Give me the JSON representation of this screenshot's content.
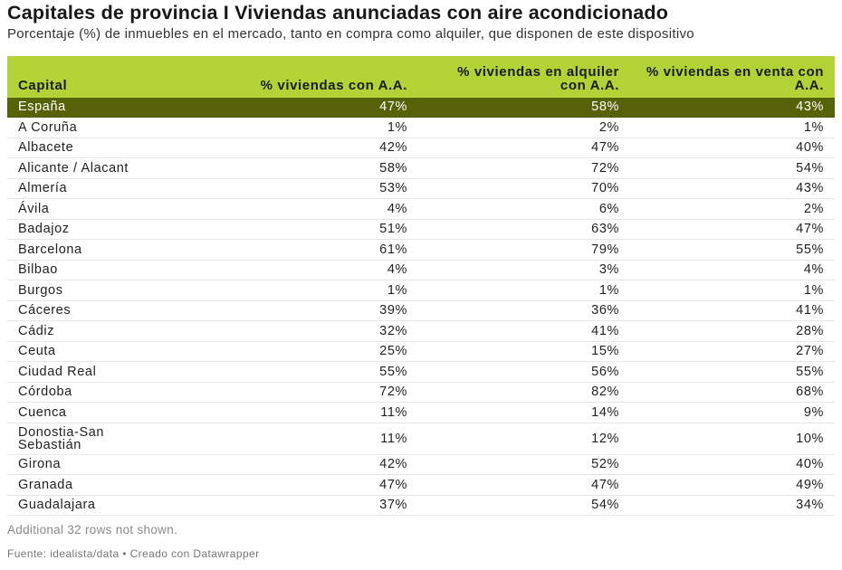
{
  "title": "Capitales de provincia I Viviendas anunciadas con aire acondicionado",
  "subtitle": "Porcentaje (%) de inmuebles en el mercado, tanto en compra como alquiler, que disponen de este dispositivo",
  "colors": {
    "header_bg": "#b2d235",
    "highlight_row_bg": "#566208",
    "highlight_row_text": "#ffffff"
  },
  "chart_data": {
    "type": "table",
    "columns": [
      "Capital",
      "% viviendas con A.A.",
      "% viviendas en alquiler con A.A.",
      "% viviendas en venta con A.A."
    ],
    "rows": [
      {
        "capital": "España",
        "total": "47%",
        "alquiler": "58%",
        "venta": "43%",
        "highlight": true
      },
      {
        "capital": "A Coruña",
        "total": "1%",
        "alquiler": "2%",
        "venta": "1%"
      },
      {
        "capital": "Albacete",
        "total": "42%",
        "alquiler": "47%",
        "venta": "40%"
      },
      {
        "capital": "Alicante / Alacant",
        "total": "58%",
        "alquiler": "72%",
        "venta": "54%"
      },
      {
        "capital": "Almería",
        "total": "53%",
        "alquiler": "70%",
        "venta": "43%"
      },
      {
        "capital": "Ávila",
        "total": "4%",
        "alquiler": "6%",
        "venta": "2%"
      },
      {
        "capital": "Badajoz",
        "total": "51%",
        "alquiler": "63%",
        "venta": "47%"
      },
      {
        "capital": "Barcelona",
        "total": "61%",
        "alquiler": "79%",
        "venta": "55%"
      },
      {
        "capital": "Bilbao",
        "total": "4%",
        "alquiler": "3%",
        "venta": "4%"
      },
      {
        "capital": "Burgos",
        "total": "1%",
        "alquiler": "1%",
        "venta": "1%"
      },
      {
        "capital": "Cáceres",
        "total": "39%",
        "alquiler": "36%",
        "venta": "41%"
      },
      {
        "capital": "Cádiz",
        "total": "32%",
        "alquiler": "41%",
        "venta": "28%"
      },
      {
        "capital": "Ceuta",
        "total": "25%",
        "alquiler": "15%",
        "venta": "27%"
      },
      {
        "capital": "Ciudad Real",
        "total": "55%",
        "alquiler": "56%",
        "venta": "55%"
      },
      {
        "capital": "Córdoba",
        "total": "72%",
        "alquiler": "82%",
        "venta": "68%"
      },
      {
        "capital": "Cuenca",
        "total": "11%",
        "alquiler": "14%",
        "venta": "9%"
      },
      {
        "capital": "Donostia-San Sebastián",
        "total": "11%",
        "alquiler": "12%",
        "venta": "10%",
        "wrap": true
      },
      {
        "capital": "Girona",
        "total": "42%",
        "alquiler": "52%",
        "venta": "40%"
      },
      {
        "capital": "Granada",
        "total": "47%",
        "alquiler": "47%",
        "venta": "49%"
      },
      {
        "capital": "Guadalajara",
        "total": "37%",
        "alquiler": "54%",
        "venta": "34%"
      }
    ]
  },
  "more_rows_text": "Additional 32 rows not shown.",
  "footer": "Fuente: idealista/data • Creado con Datawrapper"
}
